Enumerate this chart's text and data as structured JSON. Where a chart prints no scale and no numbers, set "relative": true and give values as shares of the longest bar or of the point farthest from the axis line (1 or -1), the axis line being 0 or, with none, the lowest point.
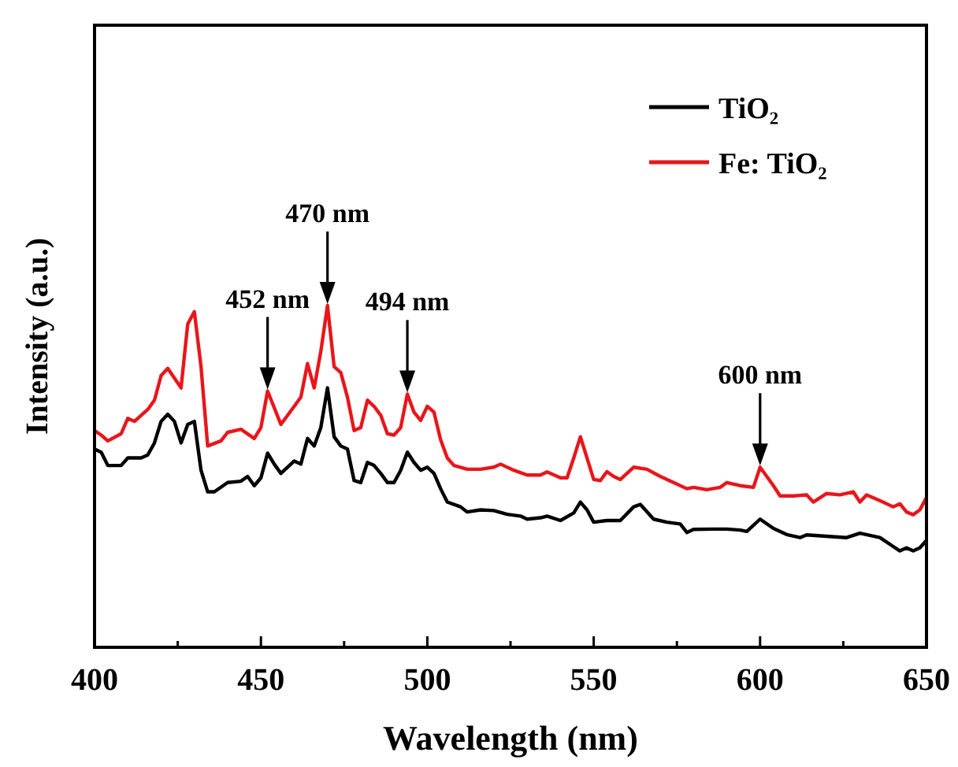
{
  "chart_data": {
    "type": "line",
    "relative": true,
    "xlabel": "Wavelength (nm)",
    "ylabel": "Intensity (a.u.)",
    "xlim": [
      400,
      650
    ],
    "xticks": [
      400,
      {
        "value": 425,
        "label": null
      },
      450,
      {
        "value": 475,
        "label": null
      },
      500,
      {
        "value": 525,
        "label": null
      },
      550,
      {
        "value": 575,
        "label": null
      },
      600,
      {
        "value": 625,
        "label": null
      },
      650
    ],
    "legend": "top right",
    "grid": false,
    "marker": "none",
    "line_style": "solid",
    "series": [
      {
        "name": "TiO₂",
        "color": "#000000",
        "x": [
          400,
          402,
          404,
          408,
          410,
          414,
          416,
          418,
          420,
          422,
          424,
          426,
          428,
          430,
          432,
          434,
          436,
          440,
          444,
          446,
          448,
          450,
          452,
          454,
          456,
          458,
          460,
          462,
          464,
          466,
          468,
          470,
          472,
          474,
          476,
          478,
          480,
          482,
          484,
          486,
          488,
          490,
          492,
          494,
          496,
          498,
          500,
          502,
          504,
          506,
          510,
          512,
          516,
          520,
          524,
          528,
          530,
          534,
          536,
          540,
          544,
          546,
          548,
          550,
          554,
          558,
          562,
          564,
          568,
          572,
          576,
          578,
          580,
          586,
          590,
          594,
          596,
          600,
          604,
          608,
          612,
          614,
          620,
          626,
          630,
          636,
          640,
          642,
          644,
          646,
          648,
          650
        ],
        "values": [
          0.58,
          0.571,
          0.532,
          0.532,
          0.554,
          0.554,
          0.563,
          0.598,
          0.661,
          0.682,
          0.661,
          0.598,
          0.652,
          0.661,
          0.518,
          0.455,
          0.455,
          0.482,
          0.486,
          0.5,
          0.473,
          0.496,
          0.568,
          0.536,
          0.509,
          0.527,
          0.545,
          0.536,
          0.611,
          0.589,
          0.643,
          0.759,
          0.616,
          0.589,
          0.58,
          0.488,
          0.482,
          0.541,
          0.532,
          0.509,
          0.482,
          0.482,
          0.518,
          0.571,
          0.541,
          0.518,
          0.527,
          0.509,
          0.464,
          0.425,
          0.411,
          0.396,
          0.402,
          0.4,
          0.389,
          0.384,
          0.375,
          0.379,
          0.384,
          0.371,
          0.393,
          0.425,
          0.402,
          0.366,
          0.371,
          0.371,
          0.411,
          0.418,
          0.375,
          0.366,
          0.361,
          0.336,
          0.345,
          0.346,
          0.346,
          0.343,
          0.339,
          0.375,
          0.348,
          0.33,
          0.321,
          0.329,
          0.325,
          0.321,
          0.334,
          0.321,
          0.295,
          0.282,
          0.291,
          0.282,
          0.291,
          0.313
        ]
      },
      {
        "name": "Fe: TiO₂",
        "color": "#e8161b",
        "x": [
          400,
          402,
          404,
          408,
          410,
          412,
          416,
          418,
          420,
          422,
          426,
          428,
          430,
          432,
          434,
          438,
          440,
          444,
          448,
          450,
          452,
          456,
          460,
          462,
          464,
          466,
          468,
          470,
          472,
          474,
          476,
          478,
          480,
          482,
          484,
          486,
          488,
          490,
          492,
          494,
          496,
          498,
          500,
          502,
          504,
          506,
          508,
          512,
          516,
          520,
          522,
          526,
          530,
          534,
          536,
          540,
          542,
          544,
          546,
          550,
          552,
          554,
          556,
          558,
          562,
          566,
          570,
          574,
          578,
          580,
          584,
          588,
          590,
          594,
          598,
          600,
          604,
          606,
          610,
          614,
          616,
          620,
          624,
          628,
          630,
          632,
          636,
          640,
          642,
          644,
          646,
          648,
          650
        ],
        "values": [
          0.634,
          0.621,
          0.604,
          0.625,
          0.67,
          0.661,
          0.696,
          0.723,
          0.795,
          0.816,
          0.759,
          0.946,
          0.982,
          0.821,
          0.589,
          0.604,
          0.629,
          0.638,
          0.611,
          0.643,
          0.75,
          0.652,
          0.705,
          0.732,
          0.83,
          0.759,
          0.866,
          1,
          0.821,
          0.804,
          0.732,
          0.634,
          0.643,
          0.723,
          0.705,
          0.679,
          0.625,
          0.621,
          0.643,
          0.741,
          0.688,
          0.664,
          0.705,
          0.688,
          0.607,
          0.554,
          0.532,
          0.521,
          0.521,
          0.527,
          0.536,
          0.518,
          0.504,
          0.504,
          0.513,
          0.496,
          0.496,
          0.554,
          0.616,
          0.491,
          0.488,
          0.514,
          0.5,
          0.491,
          0.527,
          0.521,
          0.5,
          0.482,
          0.464,
          0.468,
          0.461,
          0.468,
          0.482,
          0.473,
          0.468,
          0.527,
          0.473,
          0.443,
          0.443,
          0.446,
          0.425,
          0.45,
          0.446,
          0.455,
          0.425,
          0.446,
          0.429,
          0.411,
          0.42,
          0.396,
          0.388,
          0.402,
          0.438
        ]
      }
    ],
    "annotations": [
      {
        "text": "452 nm",
        "x": 452,
        "y": 0.75
      },
      {
        "text": "470 nm",
        "x": 470,
        "y": 1
      },
      {
        "text": "494 nm",
        "x": 494,
        "y": 0.741
      },
      {
        "text": "600 nm",
        "x": 600,
        "y": 0.527
      }
    ]
  }
}
